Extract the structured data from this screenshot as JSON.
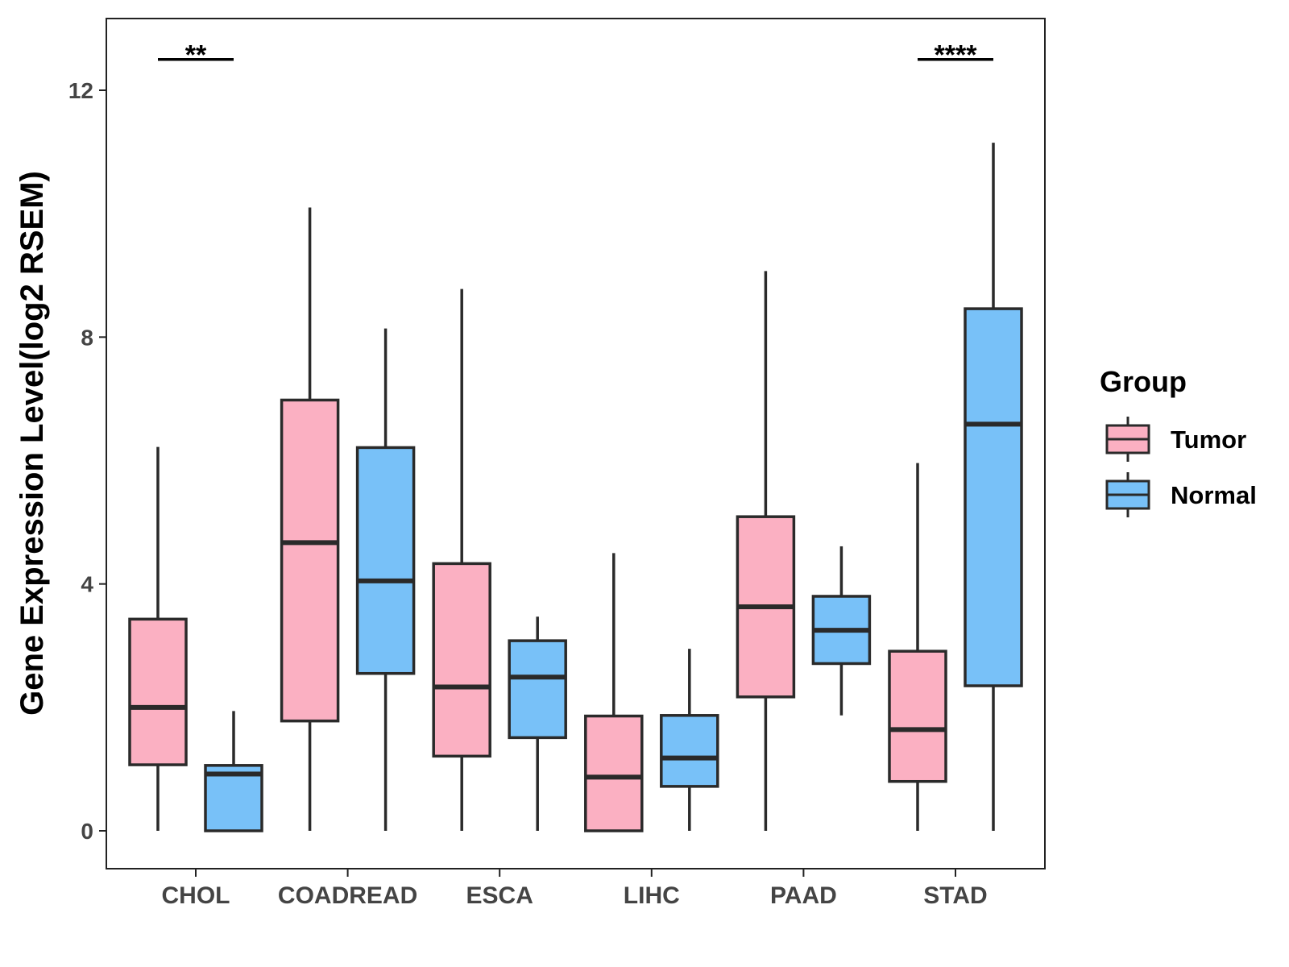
{
  "chart_data": {
    "type": "boxplot",
    "title": "",
    "xlabel": "",
    "ylabel": "Gene Expression Level(log2 RSEM)",
    "ylim": [
      -0.6,
      13.2
    ],
    "yticks": [
      0,
      4,
      8,
      12
    ],
    "grid": false,
    "legend_position": "right",
    "legend_title": "Group",
    "categories": [
      "CHOL",
      "COADREAD",
      "ESCA",
      "LIHC",
      "PAAD",
      "STAD"
    ],
    "series": [
      {
        "name": "Tumor",
        "color": "#FBB0C2",
        "boxes": [
          {
            "min": 0,
            "q1": 1.07,
            "median": 2.0,
            "q3": 3.43,
            "max": 6.22
          },
          {
            "min": 0,
            "q1": 1.78,
            "median": 4.67,
            "q3": 6.98,
            "max": 10.1
          },
          {
            "min": 0,
            "q1": 1.21,
            "median": 2.33,
            "q3": 4.33,
            "max": 8.78
          },
          {
            "min": 0,
            "q1": 0,
            "median": 0.87,
            "q3": 1.86,
            "max": 4.5
          },
          {
            "min": 0,
            "q1": 2.17,
            "median": 3.63,
            "q3": 5.09,
            "max": 9.07
          },
          {
            "min": 0,
            "q1": 0.8,
            "median": 1.64,
            "q3": 2.91,
            "max": 5.96
          }
        ]
      },
      {
        "name": "Normal",
        "color": "#78C1F8",
        "boxes": [
          {
            "min": 0,
            "q1": 0,
            "median": 0.92,
            "q3": 1.06,
            "max": 1.94
          },
          {
            "min": 0,
            "q1": 2.55,
            "median": 4.05,
            "q3": 6.21,
            "max": 8.14
          },
          {
            "min": 0,
            "q1": 1.51,
            "median": 2.49,
            "q3": 3.08,
            "max": 3.47
          },
          {
            "min": 0,
            "q1": 0.72,
            "median": 1.18,
            "q3": 1.87,
            "max": 2.95
          },
          {
            "min": 1.87,
            "q1": 2.71,
            "median": 3.25,
            "q3": 3.8,
            "max": 4.61
          },
          {
            "min": 0,
            "q1": 2.35,
            "median": 6.59,
            "q3": 8.46,
            "max": 11.15
          }
        ]
      }
    ],
    "annotations": [
      {
        "category": "CHOL",
        "text": "**",
        "y": 12.5
      },
      {
        "category": "STAD",
        "text": "****",
        "y": 12.5
      }
    ]
  }
}
